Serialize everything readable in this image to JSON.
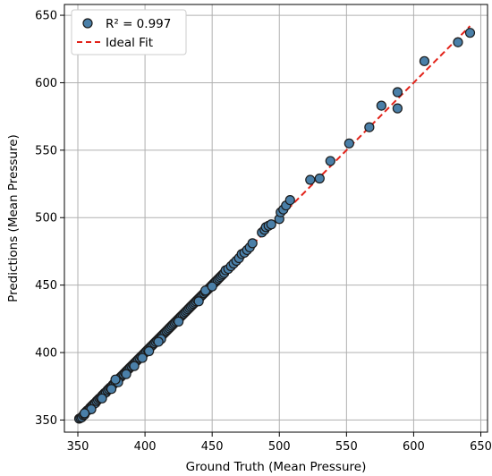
{
  "chart_data": {
    "type": "scatter",
    "xlabel": "Ground Truth (Mean Pressure)",
    "ylabel": "Predictions (Mean Pressure)",
    "xlim": [
      340,
      655
    ],
    "ylim": [
      341,
      658
    ],
    "xticks": [
      350,
      400,
      450,
      500,
      550,
      600,
      650
    ],
    "yticks": [
      350,
      400,
      450,
      500,
      550,
      600,
      650
    ],
    "grid": true,
    "legend_position": "top-left",
    "colors": {
      "point_fill": "#4a7fa8",
      "point_edge": "#1a1a1a",
      "ideal_line": "#e2231a",
      "grid": "#b0b0b0"
    },
    "series": [
      {
        "name": "R² = 0.997",
        "kind": "scatter",
        "points": [
          [
            351,
            351
          ],
          [
            352,
            351.5
          ],
          [
            353,
            352
          ],
          [
            354,
            353.5
          ],
          [
            355,
            354
          ],
          [
            356,
            356
          ],
          [
            357,
            357
          ],
          [
            358,
            357.5
          ],
          [
            359,
            359
          ],
          [
            360,
            360
          ],
          [
            361,
            361
          ],
          [
            362,
            362
          ],
          [
            363,
            362.5
          ],
          [
            364,
            364
          ],
          [
            365,
            365
          ],
          [
            366,
            366
          ],
          [
            367,
            366.5
          ],
          [
            368,
            368
          ],
          [
            369,
            369
          ],
          [
            370,
            370
          ],
          [
            371,
            370.5
          ],
          [
            372,
            372
          ],
          [
            373,
            373
          ],
          [
            374,
            374
          ],
          [
            375,
            374.5
          ],
          [
            376,
            376
          ],
          [
            377,
            377
          ],
          [
            378,
            378
          ],
          [
            379,
            378.5
          ],
          [
            380,
            380
          ],
          [
            381,
            381
          ],
          [
            382,
            382
          ],
          [
            383,
            383
          ],
          [
            384,
            384
          ],
          [
            385,
            385
          ],
          [
            386,
            386
          ],
          [
            387,
            387
          ],
          [
            388,
            388
          ],
          [
            389,
            389
          ],
          [
            390,
            390
          ],
          [
            391,
            391
          ],
          [
            392,
            392
          ],
          [
            393,
            393
          ],
          [
            394,
            394
          ],
          [
            395,
            395
          ],
          [
            396,
            396
          ],
          [
            397,
            397
          ],
          [
            398,
            398
          ],
          [
            399,
            399
          ],
          [
            400,
            400
          ],
          [
            401,
            401
          ],
          [
            402,
            402
          ],
          [
            403,
            403
          ],
          [
            404,
            404
          ],
          [
            405,
            405
          ],
          [
            406,
            406
          ],
          [
            407,
            407
          ],
          [
            408,
            408
          ],
          [
            409,
            409
          ],
          [
            410,
            410
          ],
          [
            411,
            411
          ],
          [
            412,
            412
          ],
          [
            413,
            413
          ],
          [
            414,
            414
          ],
          [
            415,
            415
          ],
          [
            416,
            416
          ],
          [
            417,
            417
          ],
          [
            418,
            418
          ],
          [
            419,
            419
          ],
          [
            420,
            420
          ],
          [
            421,
            421
          ],
          [
            422,
            422
          ],
          [
            423,
            423
          ],
          [
            424,
            424
          ],
          [
            425,
            425
          ],
          [
            426,
            426
          ],
          [
            427,
            427
          ],
          [
            428,
            428
          ],
          [
            429,
            429
          ],
          [
            430,
            430
          ],
          [
            431,
            431
          ],
          [
            432,
            432
          ],
          [
            433,
            433
          ],
          [
            434,
            434
          ],
          [
            435,
            435
          ],
          [
            436,
            436
          ],
          [
            437,
            437
          ],
          [
            438,
            438
          ],
          [
            439,
            439
          ],
          [
            440,
            440
          ],
          [
            441,
            441
          ],
          [
            442,
            442
          ],
          [
            443,
            443
          ],
          [
            444,
            444
          ],
          [
            445,
            445
          ],
          [
            446,
            446
          ],
          [
            447,
            447
          ],
          [
            448,
            448
          ],
          [
            449,
            449
          ],
          [
            450,
            450
          ],
          [
            451,
            451
          ],
          [
            452,
            452
          ],
          [
            453,
            453
          ],
          [
            454,
            454
          ],
          [
            455,
            455
          ],
          [
            456,
            456
          ],
          [
            457,
            457
          ],
          [
            458,
            458
          ],
          [
            459,
            459
          ],
          [
            460,
            461
          ],
          [
            462,
            462
          ],
          [
            464,
            464
          ],
          [
            466,
            466
          ],
          [
            468,
            468
          ],
          [
            470,
            470
          ],
          [
            472,
            473
          ],
          [
            474,
            474
          ],
          [
            476,
            476
          ],
          [
            478,
            478
          ],
          [
            480,
            481
          ],
          [
            487,
            489
          ],
          [
            489,
            491
          ],
          [
            490,
            493
          ],
          [
            492,
            494
          ],
          [
            494,
            495
          ],
          [
            500,
            499
          ],
          [
            501,
            504
          ],
          [
            503,
            506
          ],
          [
            505,
            509
          ],
          [
            508,
            513
          ],
          [
            523,
            528
          ],
          [
            530,
            529
          ],
          [
            538,
            542
          ],
          [
            552,
            555
          ],
          [
            567,
            567
          ],
          [
            576,
            583
          ],
          [
            588,
            593
          ],
          [
            588,
            581
          ],
          [
            608,
            616
          ],
          [
            633,
            630
          ],
          [
            642,
            637
          ],
          [
            360,
            358
          ],
          [
            368,
            366
          ],
          [
            380,
            378
          ],
          [
            392,
            390
          ],
          [
            403,
            401
          ],
          [
            412,
            410
          ],
          [
            355,
            355
          ],
          [
            375,
            373
          ],
          [
            398,
            396
          ],
          [
            410,
            408
          ],
          [
            425,
            423
          ],
          [
            440,
            438
          ],
          [
            445,
            446
          ],
          [
            450,
            449
          ],
          [
            378,
            380
          ],
          [
            386,
            384
          ]
        ]
      },
      {
        "name": "Ideal Fit",
        "kind": "line",
        "points": [
          [
            351,
            351
          ],
          [
            642,
            642
          ]
        ]
      }
    ]
  }
}
